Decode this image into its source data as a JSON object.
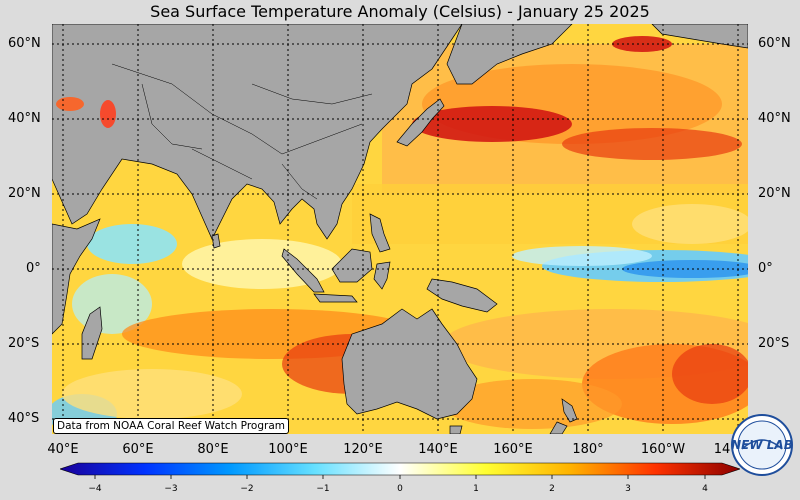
{
  "title": "Sea Surface Temperature Anomaly (Celsius) - January 25 2025",
  "credit": "Data from NOAA Coral Reef Watch Program",
  "lat_labels": [
    "60°N",
    "40°N",
    "20°N",
    "0°",
    "20°S",
    "40°S"
  ],
  "lon_labels": [
    "40°E",
    "60°E",
    "80°E",
    "100°E",
    "120°E",
    "140°E",
    "160°E",
    "180°",
    "160°W",
    "14"
  ],
  "colorbar": {
    "ticks": [
      "−4",
      "−3",
      "−2",
      "−1",
      "0",
      "1",
      "2",
      "3",
      "4"
    ],
    "colors": [
      "#1a0099",
      "#0033ff",
      "#0099ff",
      "#66e0ff",
      "#ffffff",
      "#ffff33",
      "#ffb300",
      "#ff3300",
      "#8b0000"
    ]
  },
  "logo": {
    "text": "NEW LAB"
  },
  "colors": {
    "land": "#a6a6a6",
    "background": "#dcdcdc"
  }
}
